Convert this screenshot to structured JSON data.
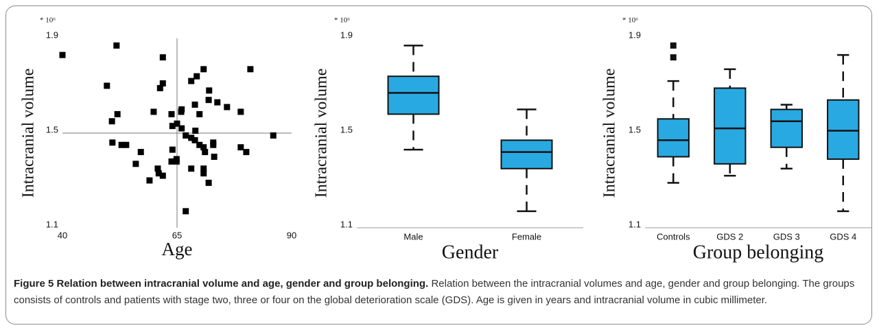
{
  "chart_data": [
    {
      "type": "scatter",
      "axis_multiplier": "* 10⁶",
      "x_label": "Age",
      "y_label": "Intracranial volume",
      "xlim": [
        40,
        90
      ],
      "xticks": [
        40,
        65,
        90
      ],
      "ylim": [
        1.1,
        1.9
      ],
      "yticks": [
        1.1,
        1.5,
        1.9
      ],
      "color": "#000000",
      "reference_lines": {
        "x": 65,
        "y": 1.5
      },
      "x": [
        40.0,
        51.8,
        61.9,
        49.7,
        61.9,
        61.3,
        70.8,
        69.3,
        68.1,
        72.0,
        71.9,
        73.8,
        75.9,
        68.9,
        78.9,
        81.0,
        59.9,
        52.0,
        50.8,
        66.0,
        65.9,
        63.8,
        69.9,
        65.0,
        64.0,
        66.0,
        66.9,
        68.1,
        69.0,
        68.9,
        69.9,
        70.8,
        72.9,
        72.9,
        71.1,
        73.1,
        64.0,
        63.8,
        64.9,
        64.9,
        50.9,
        52.9,
        53.9,
        57.1,
        56.0,
        60.8,
        61.0,
        61.9,
        59.0,
        68.1,
        70.8,
        70.8,
        71.9,
        78.9,
        80.1,
        86.0,
        66.9
      ],
      "y": [
        1.83,
        1.87,
        1.82,
        1.7,
        1.71,
        1.69,
        1.77,
        1.74,
        1.72,
        1.68,
        1.64,
        1.63,
        1.61,
        1.62,
        1.59,
        1.77,
        1.59,
        1.58,
        1.55,
        1.6,
        1.59,
        1.58,
        1.58,
        1.54,
        1.53,
        1.52,
        1.49,
        1.48,
        1.51,
        1.47,
        1.45,
        1.44,
        1.46,
        1.45,
        1.42,
        1.4,
        1.43,
        1.38,
        1.39,
        1.38,
        1.46,
        1.45,
        1.45,
        1.42,
        1.37,
        1.35,
        1.33,
        1.32,
        1.3,
        1.35,
        1.35,
        1.33,
        1.29,
        1.44,
        1.42,
        1.49,
        1.17
      ]
    },
    {
      "type": "box",
      "axis_multiplier": "* 10⁶",
      "x_label": "Gender",
      "y_label": "Intracranial volume",
      "ylim": [
        1.1,
        1.9
      ],
      "yticks": [
        1.1,
        1.5,
        1.9
      ],
      "color": "#29a9e1",
      "categories": [
        "Male",
        "Female"
      ],
      "boxes": [
        {
          "whisker_low": 1.43,
          "q1": 1.58,
          "median": 1.67,
          "q3": 1.74,
          "whisker_high": 1.87,
          "outliers": []
        },
        {
          "whisker_low": 1.17,
          "q1": 1.35,
          "median": 1.42,
          "q3": 1.47,
          "whisker_high": 1.6,
          "outliers": []
        }
      ]
    },
    {
      "type": "box",
      "axis_multiplier": "* 10⁶",
      "x_label": "Group belonging",
      "y_label": "Intracranial volume",
      "ylim": [
        1.1,
        1.9
      ],
      "yticks": [
        1.1,
        1.5,
        1.9
      ],
      "color": "#29a9e1",
      "categories": [
        "Controls",
        "GDS 2",
        "GDS 3",
        "GDS 4"
      ],
      "boxes": [
        {
          "whisker_low": 1.29,
          "q1": 1.4,
          "median": 1.47,
          "q3": 1.56,
          "whisker_high": 1.72,
          "outliers": [
            1.87,
            1.82
          ]
        },
        {
          "whisker_low": 1.32,
          "q1": 1.37,
          "median": 1.52,
          "q3": 1.69,
          "whisker_high": 1.77,
          "outliers": []
        },
        {
          "whisker_low": 1.35,
          "q1": 1.44,
          "median": 1.55,
          "q3": 1.6,
          "whisker_high": 1.62,
          "outliers": []
        },
        {
          "whisker_low": 1.17,
          "q1": 1.39,
          "median": 1.51,
          "q3": 1.64,
          "whisker_high": 1.83,
          "outliers": []
        }
      ]
    }
  ],
  "caption": {
    "title": "Figure 5 Relation between intracranial volume and age, gender and group belonging.",
    "text": "Relation between the intracranial volumes and age, gender and group belonging. The groups consists of controls and patients with stage two, three or four on the global deterioration scale (GDS). Age is given in years and intracranial volume in cubic millimeter."
  }
}
